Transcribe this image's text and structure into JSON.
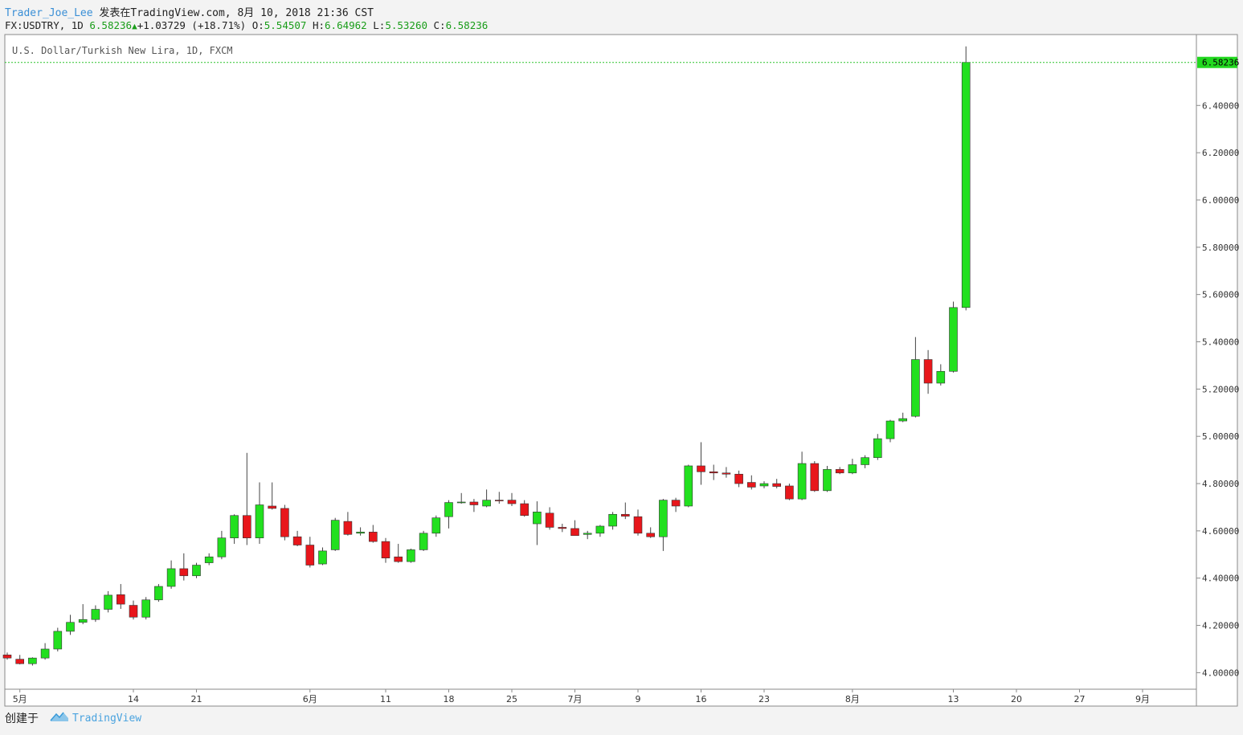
{
  "header": {
    "author": "Trader_Joe_Lee",
    "published": "发表在TradingView.com, 8月 10, 2018 21:36 CST",
    "symbol_line": "FX:USDTRY, 1D",
    "last_price": "6.58236",
    "change": "+1.03729 (+18.71%)",
    "o_label": "O:",
    "o_value": "5.54507",
    "h_label": "H:",
    "h_value": "6.64962",
    "l_label": "L:",
    "l_value": "5.53260",
    "c_label": "C:",
    "c_value": "6.58236"
  },
  "footer": {
    "created_with": "创建于",
    "brand": "TradingView"
  },
  "colors": {
    "up": "#22e01f",
    "down": "#e8161b",
    "price_line": "#2bc42b",
    "price_tag": "#22d81f",
    "axis_text": "#333333"
  },
  "chart_data": {
    "type": "candlestick",
    "title": "U.S. Dollar/Turkish New Lira, 1D, FXCM",
    "ylim": [
      3.93,
      6.7
    ],
    "y_ticks": [
      "4.00000",
      "4.20000",
      "4.40000",
      "4.60000",
      "4.80000",
      "5.00000",
      "5.20000",
      "5.40000",
      "5.60000",
      "5.80000",
      "6.00000",
      "6.20000",
      "6.40000"
    ],
    "x_tick_labels": [
      {
        "label": "5月",
        "day": 1
      },
      {
        "label": "14",
        "day": 10
      },
      {
        "label": "21",
        "day": 15
      },
      {
        "label": "6月",
        "day": 24
      },
      {
        "label": "11",
        "day": 30
      },
      {
        "label": "18",
        "day": 35
      },
      {
        "label": "25",
        "day": 40
      },
      {
        "label": "7月",
        "day": 45
      },
      {
        "label": "9",
        "day": 50
      },
      {
        "label": "16",
        "day": 55
      },
      {
        "label": "23",
        "day": 60
      },
      {
        "label": "8月",
        "day": 67
      },
      {
        "label": "13",
        "day": 75
      },
      {
        "label": "20",
        "day": 80
      },
      {
        "label": "27",
        "day": 85
      },
      {
        "label": "9月",
        "day": 90
      }
    ],
    "last_price_label": "6.58236",
    "candles": [
      [
        4.075,
        4.085,
        4.055,
        4.062
      ],
      [
        4.057,
        4.075,
        4.035,
        4.038
      ],
      [
        4.038,
        4.065,
        4.03,
        4.062
      ],
      [
        4.062,
        4.125,
        4.055,
        4.1
      ],
      [
        4.1,
        4.19,
        4.09,
        4.175
      ],
      [
        4.175,
        4.245,
        4.16,
        4.213
      ],
      [
        4.213,
        4.29,
        4.205,
        4.225
      ],
      [
        4.225,
        4.285,
        4.215,
        4.268
      ],
      [
        4.268,
        4.345,
        4.255,
        4.328
      ],
      [
        4.33,
        4.375,
        4.27,
        4.29
      ],
      [
        4.285,
        4.305,
        4.225,
        4.235
      ],
      [
        4.235,
        4.32,
        4.225,
        4.308
      ],
      [
        4.308,
        4.375,
        4.3,
        4.365
      ],
      [
        4.365,
        4.475,
        4.355,
        4.44
      ],
      [
        4.44,
        4.505,
        4.39,
        4.41
      ],
      [
        4.41,
        4.465,
        4.4,
        4.455
      ],
      [
        4.465,
        4.505,
        4.455,
        4.49
      ],
      [
        4.49,
        4.6,
        4.48,
        4.57
      ],
      [
        4.57,
        4.67,
        4.545,
        4.665
      ],
      [
        4.665,
        4.93,
        4.54,
        4.57
      ],
      [
        4.57,
        4.805,
        4.545,
        4.71
      ],
      [
        4.705,
        4.805,
        4.69,
        4.695
      ],
      [
        4.695,
        4.71,
        4.56,
        4.575
      ],
      [
        4.575,
        4.6,
        4.535,
        4.54
      ],
      [
        4.54,
        4.575,
        4.445,
        4.455
      ],
      [
        4.46,
        4.53,
        4.455,
        4.515
      ],
      [
        4.52,
        4.655,
        4.515,
        4.645
      ],
      [
        4.64,
        4.68,
        4.58,
        4.585
      ],
      [
        4.59,
        4.615,
        4.58,
        4.595
      ],
      [
        4.595,
        4.625,
        4.55,
        4.555
      ],
      [
        4.555,
        4.57,
        4.465,
        4.485
      ],
      [
        4.49,
        4.545,
        4.465,
        4.47
      ],
      [
        4.47,
        4.525,
        4.465,
        4.52
      ],
      [
        4.52,
        4.6,
        4.515,
        4.59
      ],
      [
        4.59,
        4.665,
        4.575,
        4.655
      ],
      [
        4.66,
        4.73,
        4.61,
        4.72
      ],
      [
        4.72,
        4.76,
        4.715,
        4.722
      ],
      [
        4.722,
        4.735,
        4.68,
        4.71
      ],
      [
        4.705,
        4.775,
        4.7,
        4.73
      ],
      [
        4.73,
        4.765,
        4.715,
        4.727
      ],
      [
        4.73,
        4.76,
        4.705,
        4.715
      ],
      [
        4.715,
        4.73,
        4.66,
        4.665
      ],
      [
        4.63,
        4.725,
        4.54,
        4.68
      ],
      [
        4.675,
        4.7,
        4.605,
        4.615
      ],
      [
        4.615,
        4.63,
        4.595,
        4.61
      ],
      [
        4.61,
        4.645,
        4.58,
        4.58
      ],
      [
        4.585,
        4.6,
        4.565,
        4.59
      ],
      [
        4.59,
        4.625,
        4.575,
        4.62
      ],
      [
        4.62,
        4.68,
        4.605,
        4.67
      ],
      [
        4.67,
        4.72,
        4.65,
        4.662
      ],
      [
        4.66,
        4.69,
        4.58,
        4.59
      ],
      [
        4.59,
        4.615,
        4.57,
        4.575
      ],
      [
        4.575,
        4.735,
        4.515,
        4.73
      ],
      [
        4.73,
        4.74,
        4.68,
        4.705
      ],
      [
        4.705,
        4.88,
        4.7,
        4.875
      ],
      [
        4.875,
        4.975,
        4.795,
        4.85
      ],
      [
        4.85,
        4.88,
        4.815,
        4.845
      ],
      [
        4.845,
        4.87,
        4.825,
        4.84
      ],
      [
        4.84,
        4.855,
        4.785,
        4.8
      ],
      [
        4.805,
        4.835,
        4.775,
        4.785
      ],
      [
        4.79,
        4.81,
        4.78,
        4.8
      ],
      [
        4.8,
        4.82,
        4.78,
        4.788
      ],
      [
        4.79,
        4.8,
        4.73,
        4.735
      ],
      [
        4.735,
        4.935,
        4.73,
        4.885
      ],
      [
        4.885,
        4.895,
        4.765,
        4.77
      ],
      [
        4.77,
        4.875,
        4.765,
        4.86
      ],
      [
        4.86,
        4.87,
        4.84,
        4.845
      ],
      [
        4.845,
        4.905,
        4.84,
        4.88
      ],
      [
        4.88,
        4.92,
        4.865,
        4.91
      ],
      [
        4.91,
        5.01,
        4.9,
        4.99
      ],
      [
        4.99,
        5.07,
        4.975,
        5.065
      ],
      [
        5.065,
        5.1,
        5.06,
        5.075
      ],
      [
        5.085,
        5.42,
        5.08,
        5.325
      ],
      [
        5.325,
        5.365,
        5.18,
        5.225
      ],
      [
        5.225,
        5.305,
        5.215,
        5.275
      ],
      [
        5.275,
        5.57,
        5.27,
        5.545
      ],
      [
        5.545,
        6.65,
        5.533,
        6.582
      ]
    ]
  }
}
